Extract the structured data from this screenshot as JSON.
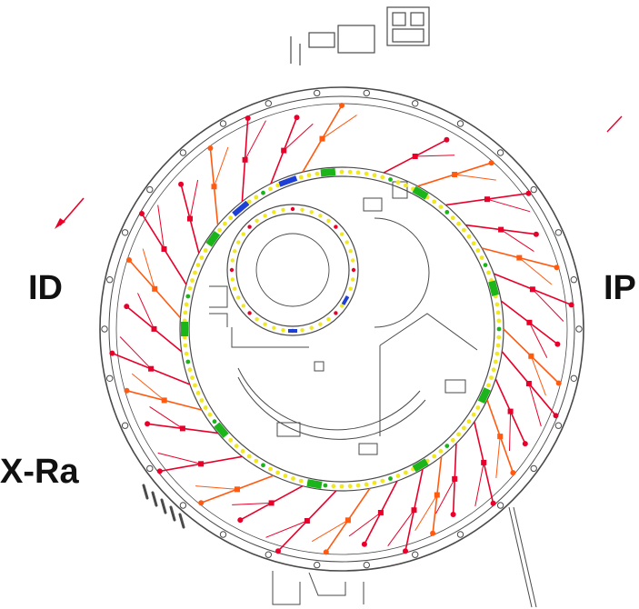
{
  "labels": {
    "left_upper": "ID",
    "right": "IP",
    "left_lower": "X-Ra"
  },
  "colors": {
    "outline": "#4a4a4a",
    "beamline_red": "#e8002a",
    "beamline_orange": "#ff5a10",
    "magnet_green": "#1bb51b",
    "magnet_yellow": "#f0e820",
    "magnet_blue": "#1d3fd6",
    "background": "#ffffff"
  }
}
